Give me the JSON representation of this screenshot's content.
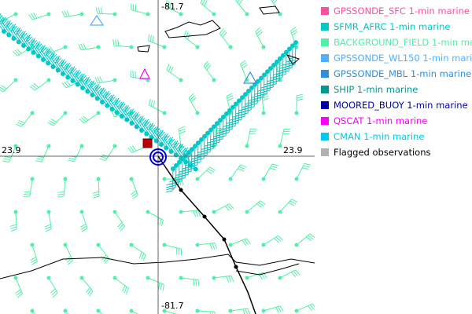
{
  "map": {
    "lon_top": "-81.7",
    "lon_bottom": "-81.7",
    "lat_left": "23.9",
    "lat_right": "23.9"
  },
  "legend": [
    {
      "label": "GPSSONDE_SFC 1-min marine",
      "color": "#ff4fa0"
    },
    {
      "label": "SFMR_AFRC 1-min marine",
      "color": "#00c8c8"
    },
    {
      "label": "BACKGROUND_FIELD 1-min marine",
      "color": "#50f0a8"
    },
    {
      "label": "GPSSONDE_WL150 1-min marine",
      "color": "#50b0ff"
    },
    {
      "label": "GPSSONDE_MBL 1-min marine",
      "color": "#3090e0"
    },
    {
      "label": "SHIP 1-min marine",
      "color": "#009890"
    },
    {
      "label": "MOORED_BUOY 1-min marine",
      "color": "#0000a8"
    },
    {
      "label": "QSCAT 1-min marine",
      "color": "#ff00ff"
    },
    {
      "label": "CMAN 1-min marine",
      "color": "#00c8f8"
    },
    {
      "label": "Flagged observations",
      "color": "#b0b0b0",
      "text_color": "#000000"
    }
  ]
}
